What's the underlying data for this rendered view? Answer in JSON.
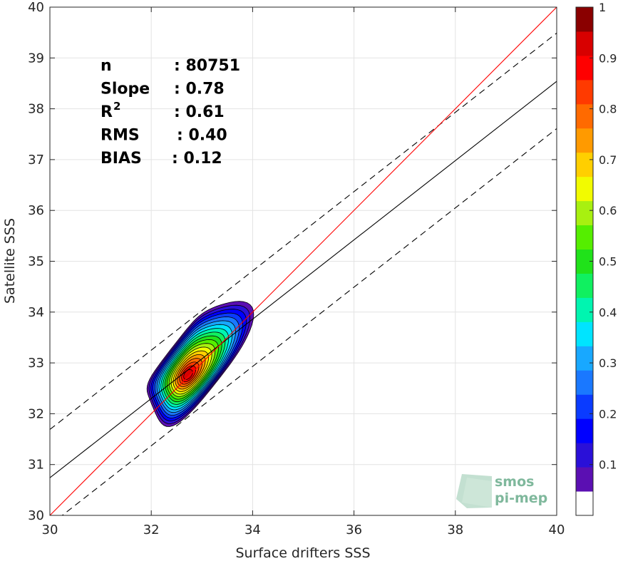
{
  "chart_data": {
    "type": "scatter-density-contour",
    "title": "",
    "xlabel": "Surface drifters SSS",
    "ylabel": "Satellite SSS",
    "xlim": [
      30,
      40
    ],
    "ylim": [
      30,
      40
    ],
    "xticks": [
      30,
      32,
      34,
      36,
      38,
      40
    ],
    "yticks": [
      30,
      31,
      32,
      33,
      34,
      35,
      36,
      37,
      38,
      39,
      40
    ],
    "grid": true,
    "stats": [
      {
        "label": "n",
        "value": ": 80751"
      },
      {
        "label": "Slope",
        "value": ": 0.78"
      },
      {
        "label": "R",
        "sup": "2",
        "value": ": 0.61"
      },
      {
        "label": "RMS",
        "value": ": 0.40"
      },
      {
        "label": "BIAS",
        "value": ": 0.12"
      }
    ],
    "density_peak": {
      "x": 32.7,
      "y": 32.8
    },
    "lines": {
      "identity": {
        "slope": 1.0,
        "intercept": 0.0,
        "color": "#ff0000"
      },
      "regression": {
        "slope": 0.78,
        "intercept": 7.34,
        "color": "#000000"
      },
      "regression_upper": {
        "slope": 0.78,
        "intercept": 8.29,
        "style": "dashed"
      },
      "regression_lower": {
        "slope": 0.78,
        "intercept": 6.41,
        "style": "dashed"
      }
    },
    "contour_levels": [
      0.05,
      0.1,
      0.15,
      0.2,
      0.25,
      0.3,
      0.35,
      0.4,
      0.45,
      0.5,
      0.55,
      0.6,
      0.65,
      0.7,
      0.75,
      0.8,
      0.85,
      0.9,
      0.95
    ],
    "colorbar": {
      "min": 0,
      "max": 1,
      "ticks": [
        0.1,
        0.2,
        0.3,
        0.4,
        0.5,
        0.6,
        0.7,
        0.8,
        0.9,
        1
      ],
      "tick_labels": [
        "0.1",
        "0.2",
        "0.3",
        "0.4",
        "0.5",
        "0.6",
        "0.7",
        "0.8",
        "0.9",
        "1"
      ],
      "colors": [
        "#ffffff",
        "#5b0fb2",
        "#2a10d8",
        "#0000ff",
        "#0a3bff",
        "#1a78ff",
        "#18a8ff",
        "#00e4ff",
        "#00f5b0",
        "#10f060",
        "#20e21a",
        "#55ee00",
        "#a8f010",
        "#f2fb00",
        "#ffcf00",
        "#ff9a00",
        "#ff6a00",
        "#ff3a00",
        "#ff0000",
        "#d80000",
        "#8a0000"
      ]
    },
    "logo": {
      "line1": "smos",
      "line2": "pi-mep"
    }
  }
}
